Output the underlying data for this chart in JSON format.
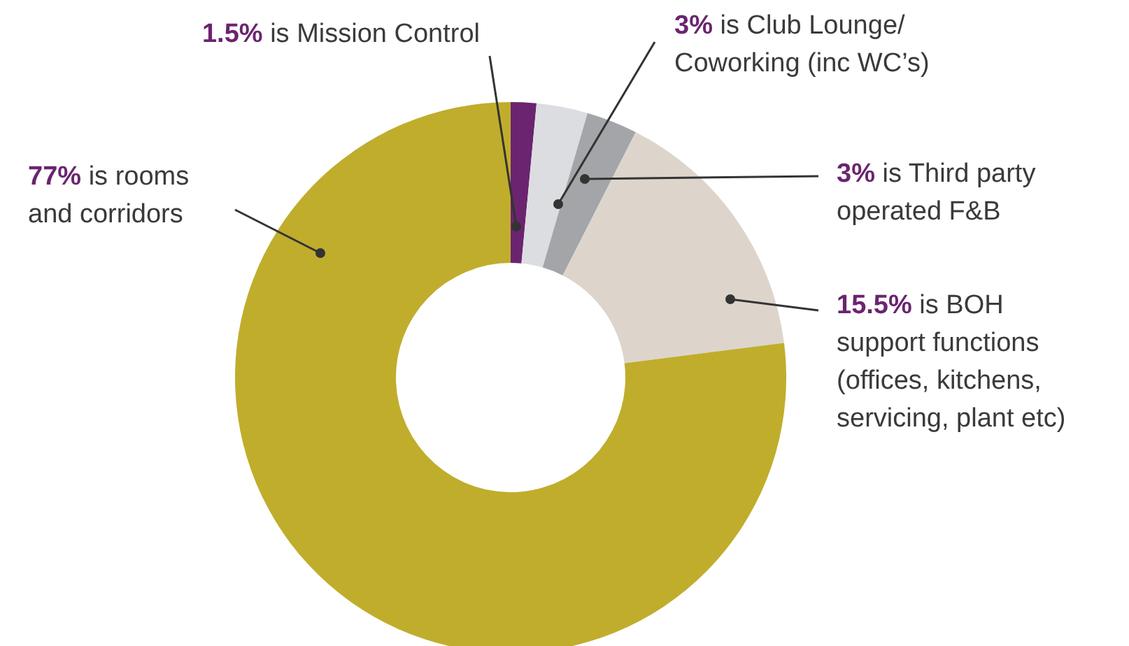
{
  "chart_data": {
    "type": "donut",
    "categories": [
      "is Mission Control",
      "is Club Lounge/\nCoworking (inc WC’s)",
      "is Third party\noperated F&B",
      "is BOH\nsupport functions\n(offices, kitchens,\nservicing, plant etc)",
      "is rooms\nand corridors"
    ],
    "values": [
      1.5,
      3,
      3,
      15.5,
      77
    ],
    "value_labels": [
      "1.5%",
      "3%",
      "3%",
      "15.5%",
      "77%"
    ],
    "colors": [
      "#6b2470",
      "#dcdde0",
      "#a3a5a8",
      "#ddd5cc",
      "#c0ad2c"
    ],
    "legend": false
  }
}
